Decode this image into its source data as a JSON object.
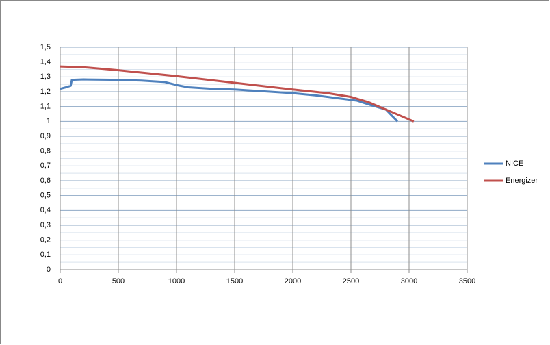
{
  "chart_data": {
    "type": "line",
    "xlim": [
      0,
      3500
    ],
    "xticks": [
      0,
      500,
      1000,
      1500,
      2000,
      2500,
      3000,
      3500
    ],
    "ylim": [
      0,
      1.5
    ],
    "yticks": [
      0,
      {
        "value": 0.1,
        "label": "0,1"
      },
      {
        "value": 0.2,
        "label": "0,2"
      },
      {
        "value": 0.3,
        "label": "0,3"
      },
      {
        "value": 0.4,
        "label": "0,4"
      },
      {
        "value": 0.5,
        "label": "0,5"
      },
      {
        "value": 0.6,
        "label": "0,6"
      },
      {
        "value": 0.7,
        "label": "0,7"
      },
      {
        "value": 0.8,
        "label": "0,8"
      },
      {
        "value": 0.9,
        "label": "0,9"
      },
      1,
      {
        "value": 1.1,
        "label": "1,1"
      },
      {
        "value": 1.2,
        "label": "1,2"
      },
      {
        "value": 1.3,
        "label": "1,3"
      },
      {
        "value": 1.4,
        "label": "1,4"
      },
      {
        "value": 1.5,
        "label": "1,5"
      }
    ],
    "grid": true,
    "legend": "right",
    "series": [
      {
        "name": "NICE",
        "color": "#4f81bd",
        "x": [
          0,
          50,
          90,
          100,
          200,
          500,
          700,
          900,
          1000,
          1100,
          1300,
          1500,
          1700,
          2000,
          2200,
          2400,
          2550,
          2650,
          2800,
          2850,
          2900
        ],
        "values": [
          1.22,
          1.23,
          1.24,
          1.28,
          1.283,
          1.28,
          1.275,
          1.265,
          1.245,
          1.23,
          1.22,
          1.215,
          1.205,
          1.19,
          1.175,
          1.155,
          1.14,
          1.115,
          1.08,
          1.04,
          1.0
        ]
      },
      {
        "name": "Energizer",
        "color": "#c0504d",
        "x": [
          0,
          200,
          500,
          1000,
          1500,
          2000,
          2300,
          2500,
          2650,
          2800,
          3040
        ],
        "values": [
          1.37,
          1.365,
          1.345,
          1.305,
          1.26,
          1.215,
          1.19,
          1.165,
          1.13,
          1.08,
          1.0
        ]
      }
    ]
  }
}
